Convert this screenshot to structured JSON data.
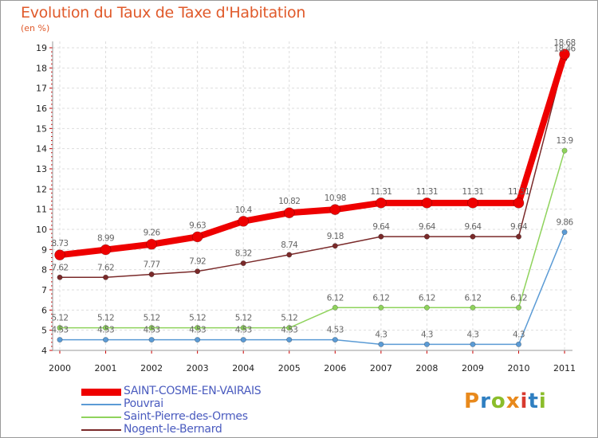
{
  "title": "Evolution du Taux de Taxe d'Habitation",
  "subtitle": "(en %)",
  "logo": {
    "text": "Proxiti",
    "colors": [
      "#e8891c",
      "#2f7fc1",
      "#8bbd2a",
      "#e8891c",
      "#d83a2f",
      "#2f7fc1",
      "#8bbd2a"
    ]
  },
  "chart_data": {
    "type": "line",
    "x": [
      "2000",
      "2001",
      "2002",
      "2003",
      "2004",
      "2005",
      "2006",
      "2007",
      "2008",
      "2009",
      "2010",
      "2011"
    ],
    "ylim": [
      4,
      19
    ],
    "yticks": [
      "4",
      "5",
      "6",
      "7",
      "8",
      "9",
      "10",
      "11",
      "12",
      "13",
      "14",
      "15",
      "16",
      "17",
      "18",
      "19"
    ],
    "grid": true,
    "legend_position": "bottom-left",
    "series": [
      {
        "name": "SAINT-COSME-EN-VAIRAIS",
        "color": "#ee0000",
        "values": [
          8.73,
          8.99,
          9.26,
          9.63,
          10.4,
          10.82,
          10.98,
          11.31,
          11.31,
          11.31,
          11.31,
          18.68
        ],
        "labels": [
          "8.73",
          "8.99",
          "9.26",
          "9.63",
          "10.4",
          "10.82",
          "10.98",
          "11.31",
          "11.31",
          "11.31",
          "11.31",
          "18.68"
        ]
      },
      {
        "name": "Pouvrai",
        "color": "#5b9bd5",
        "values": [
          4.53,
          4.53,
          4.53,
          4.53,
          4.53,
          4.53,
          4.53,
          4.3,
          4.3,
          4.3,
          4.3,
          9.86
        ],
        "labels": [
          "4.53",
          "4.53",
          "4.53",
          "4.53",
          "4.53",
          "4.53",
          "4.53",
          "4.3",
          "4.3",
          "4.3",
          "4.3",
          "9.86"
        ]
      },
      {
        "name": "Saint-Pierre-des-Ormes",
        "color": "#8fd35c",
        "values": [
          5.12,
          5.12,
          5.12,
          5.12,
          5.12,
          5.12,
          6.12,
          6.12,
          6.12,
          6.12,
          6.12,
          13.9
        ],
        "labels": [
          "5.12",
          "5.12",
          "5.12",
          "5.12",
          "5.12",
          "5.12",
          "6.12",
          "6.12",
          "6.12",
          "6.12",
          "6.12",
          "13.9"
        ]
      },
      {
        "name": "Nogent-le-Bernard",
        "color": "#7a2a2a",
        "values": [
          7.62,
          7.62,
          7.77,
          7.92,
          8.32,
          8.74,
          9.18,
          9.64,
          9.64,
          9.64,
          9.64,
          18.46
        ],
        "labels": [
          "7.62",
          "7.62",
          "7.77",
          "7.92",
          "8.32",
          "8.74",
          "9.18",
          "9.64",
          "9.64",
          "9.64",
          "9.64",
          "18.46"
        ]
      }
    ]
  }
}
